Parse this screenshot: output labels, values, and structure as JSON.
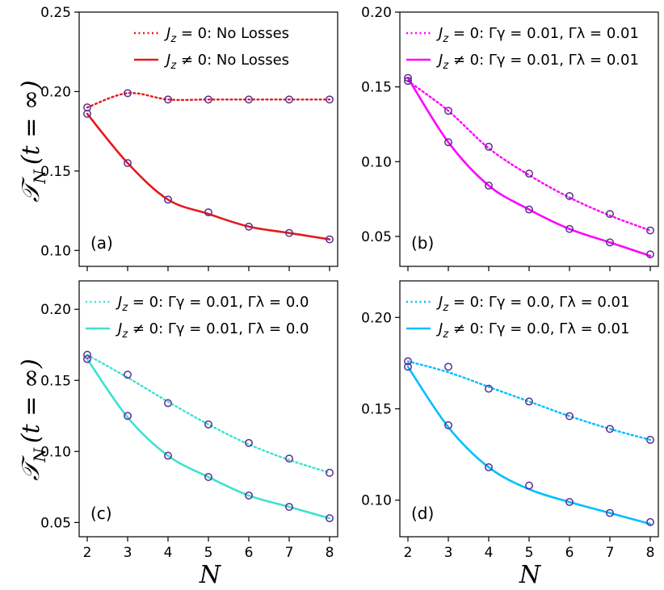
{
  "ylabel_main": "𝒯",
  "ylabel_sub": "N",
  "ylabel_rest": "(t = ∞)",
  "xlabel": "N",
  "chart_data": [
    {
      "panel": "(a)",
      "type": "line",
      "x": [
        2,
        3,
        4,
        5,
        6,
        7,
        8
      ],
      "ylim": [
        0.09,
        0.25
      ],
      "yticks": [
        0.1,
        0.15,
        0.2,
        0.25
      ],
      "legend_position": "top-right",
      "series": [
        {
          "name": "Jz=0: No Losses",
          "style": "dotted",
          "color": "#e41a1c",
          "values": [
            0.19,
            0.199,
            0.195,
            0.195,
            0.195,
            0.195,
            0.195
          ],
          "markers": [
            0.19,
            0.199,
            0.195,
            0.195,
            0.195,
            0.195,
            0.195
          ]
        },
        {
          "name": "Jz≠0: No Losses",
          "style": "solid",
          "color": "#e41a1c",
          "values": [
            0.186,
            0.155,
            0.132,
            0.123,
            0.115,
            0.111,
            0.107
          ],
          "markers": [
            0.186,
            0.155,
            0.132,
            0.124,
            0.115,
            0.111,
            0.107
          ]
        }
      ],
      "legend": [
        {
          "style": "dotted",
          "color": "#e41a1c",
          "lhs": "J",
          "sub": "z",
          "rel": " = 0: ",
          "loss": "No Losses"
        },
        {
          "style": "solid",
          "color": "#e41a1c",
          "lhs": "J",
          "sub": "z",
          "rel": " ≠ 0: ",
          "loss": "No Losses"
        }
      ]
    },
    {
      "panel": "(b)",
      "type": "line",
      "x": [
        2,
        3,
        4,
        5,
        6,
        7,
        8
      ],
      "ylim": [
        0.03,
        0.2
      ],
      "yticks": [
        0.05,
        0.1,
        0.15,
        0.2
      ],
      "legend_position": "top-right",
      "series": [
        {
          "name": "Jz=0: Γγ=0.01, Γλ=0.01",
          "style": "dotted",
          "color": "#ff00ff",
          "values": [
            0.154,
            0.134,
            0.109,
            0.091,
            0.076,
            0.064,
            0.054
          ],
          "markers": [
            0.154,
            0.134,
            0.11,
            0.092,
            0.077,
            0.065,
            0.054
          ]
        },
        {
          "name": "Jz≠0: Γγ=0.01, Γλ=0.01",
          "style": "solid",
          "color": "#ff00ff",
          "values": [
            0.156,
            0.113,
            0.084,
            0.068,
            0.055,
            0.046,
            0.037
          ],
          "markers": [
            0.156,
            0.113,
            0.084,
            0.068,
            0.055,
            0.046,
            0.038
          ]
        }
      ],
      "legend": [
        {
          "style": "dotted",
          "color": "#ff00ff",
          "lhs": "J",
          "sub": "z",
          "rel": " = 0: ",
          "loss": "Γγ = 0.01, Γλ = 0.01"
        },
        {
          "style": "solid",
          "color": "#ff00ff",
          "lhs": "J",
          "sub": "z",
          "rel": " ≠ 0: ",
          "loss": "Γγ = 0.01, Γλ = 0.01"
        }
      ]
    },
    {
      "panel": "(c)",
      "type": "line",
      "x": [
        2,
        3,
        4,
        5,
        6,
        7,
        8
      ],
      "ylim": [
        0.04,
        0.22
      ],
      "yticks": [
        0.05,
        0.1,
        0.15,
        0.2
      ],
      "legend_position": "top-right",
      "series": [
        {
          "name": "Jz=0: Γγ=0.01, Γλ=0.0",
          "style": "dotted",
          "color": "#40e0d0",
          "values": [
            0.168,
            0.152,
            0.135,
            0.119,
            0.105,
            0.094,
            0.085
          ],
          "markers": [
            0.168,
            0.154,
            0.134,
            0.119,
            0.106,
            0.095,
            0.085
          ]
        },
        {
          "name": "Jz≠0: Γγ=0.01, Γλ=0.0",
          "style": "solid",
          "color": "#40e0d0",
          "values": [
            0.165,
            0.124,
            0.097,
            0.082,
            0.069,
            0.061,
            0.053
          ],
          "markers": [
            0.165,
            0.125,
            0.097,
            0.082,
            0.069,
            0.061,
            0.053
          ]
        }
      ],
      "legend": [
        {
          "style": "dotted",
          "color": "#40e0d0",
          "lhs": "J",
          "sub": "z",
          "rel": " = 0: ",
          "loss": "Γγ = 0.01, Γλ = 0.0"
        },
        {
          "style": "solid",
          "color": "#40e0d0",
          "lhs": "J",
          "sub": "z",
          "rel": " ≠ 0: ",
          "loss": "Γγ = 0.01, Γλ = 0.0"
        }
      ]
    },
    {
      "panel": "(d)",
      "type": "line",
      "x": [
        2,
        3,
        4,
        5,
        6,
        7,
        8
      ],
      "ylim": [
        0.08,
        0.22
      ],
      "yticks": [
        0.1,
        0.15,
        0.2
      ],
      "legend_position": "top-right",
      "series": [
        {
          "name": "Jz=0: Γγ=0.0, Γλ=0.01",
          "style": "dotted",
          "color": "#00bfff",
          "values": [
            0.176,
            0.17,
            0.162,
            0.154,
            0.146,
            0.139,
            0.133
          ],
          "markers": [
            0.176,
            0.173,
            0.161,
            0.154,
            0.146,
            0.139,
            0.133
          ]
        },
        {
          "name": "Jz≠0: Γγ=0.0, Γλ=0.01",
          "style": "solid",
          "color": "#00bfff",
          "values": [
            0.173,
            0.14,
            0.118,
            0.106,
            0.099,
            0.093,
            0.087
          ],
          "markers": [
            0.173,
            0.141,
            0.118,
            0.108,
            0.099,
            0.093,
            0.088
          ]
        }
      ],
      "legend": [
        {
          "style": "dotted",
          "color": "#00bfff",
          "lhs": "J",
          "sub": "z",
          "rel": " = 0: ",
          "loss": "Γγ = 0.0, Γλ = 0.01"
        },
        {
          "style": "solid",
          "color": "#00bfff",
          "lhs": "J",
          "sub": "z",
          "rel": " ≠ 0: ",
          "loss": "Γγ = 0.0, Γλ = 0.01"
        }
      ]
    }
  ],
  "marker_color": "#5a2d91"
}
